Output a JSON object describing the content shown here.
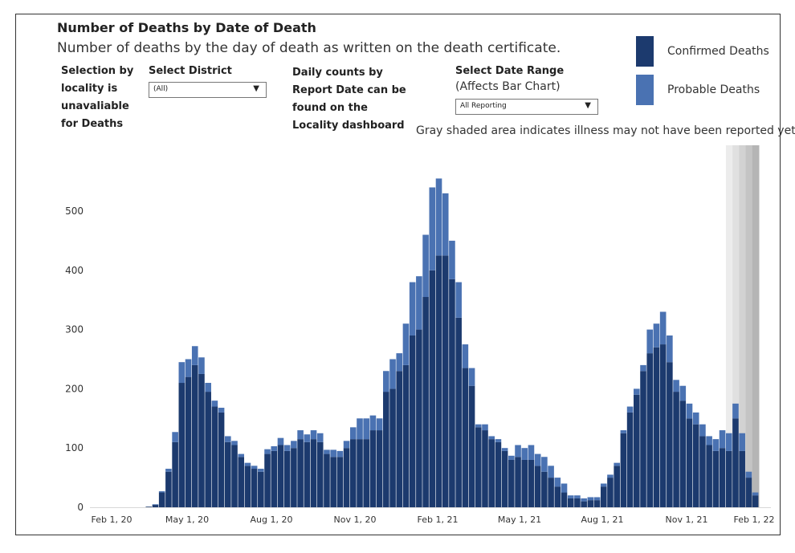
{
  "header": {
    "title": "Number of Deaths by Date of Death",
    "subtitle": "Number of deaths by the day of death as written on the death certificate."
  },
  "controls": {
    "locality_note": "Selection by locality is unavaliable for Deaths",
    "district_label": "Select District",
    "district_value": "(All)",
    "daily_note": "Daily counts by Report Date can be found on the Locality dashboard",
    "range_label": "Select Date Range",
    "range_sublabel": "(Affects Bar Chart)",
    "range_value": "All Reporting"
  },
  "gray_note": "Gray shaded area indicates illness may not have been reported yet",
  "colors": {
    "confirmed": "#1c3a6e",
    "probable": "#4a72b2",
    "shade": "#c8c8c8"
  },
  "chart_data": {
    "type": "bar",
    "stacked": true,
    "x_ticks": [
      "Feb 1, 20",
      "May 1, 20",
      "Aug 1, 20",
      "Nov 1, 20",
      "Feb 1, 21",
      "May 1, 21",
      "Aug 1, 21",
      "Nov 1, 21",
      "Feb 1, 22"
    ],
    "y_ticks": [
      0,
      100,
      200,
      300,
      400,
      500
    ],
    "ylim": [
      0,
      560
    ],
    "legend": [
      "Confirmed Deaths",
      "Probable Deaths"
    ],
    "legend_position": "top-right",
    "shaded_region": "final ~5 weeks (Jan 2022)",
    "series": [
      {
        "name": "Confirmed Deaths",
        "values": [
          0,
          0,
          0,
          0,
          0,
          0,
          0,
          1,
          4,
          25,
          60,
          110,
          210,
          220,
          240,
          225,
          195,
          170,
          160,
          110,
          105,
          85,
          70,
          65,
          60,
          90,
          95,
          105,
          95,
          100,
          115,
          110,
          115,
          110,
          90,
          85,
          85,
          100,
          115,
          115,
          115,
          130,
          130,
          195,
          200,
          230,
          240,
          290,
          300,
          355,
          400,
          425,
          425,
          385,
          320,
          235,
          205,
          135,
          130,
          115,
          110,
          95,
          80,
          85,
          80,
          80,
          70,
          60,
          50,
          35,
          25,
          15,
          15,
          10,
          12,
          12,
          35,
          50,
          70,
          125,
          160,
          190,
          230,
          260,
          270,
          275,
          245,
          195,
          180,
          150,
          140,
          120,
          105,
          95,
          100,
          95,
          150,
          95,
          50,
          20
        ]
      },
      {
        "name": "Probable Deaths",
        "values": [
          0,
          0,
          0,
          0,
          0,
          0,
          0,
          0,
          1,
          2,
          5,
          17,
          35,
          30,
          32,
          28,
          15,
          10,
          8,
          10,
          7,
          5,
          5,
          5,
          5,
          8,
          8,
          12,
          10,
          12,
          15,
          13,
          15,
          15,
          7,
          12,
          10,
          12,
          20,
          35,
          35,
          25,
          20,
          35,
          50,
          30,
          70,
          90,
          90,
          105,
          140,
          130,
          105,
          65,
          60,
          40,
          30,
          5,
          10,
          5,
          5,
          5,
          7,
          20,
          20,
          25,
          20,
          25,
          20,
          15,
          15,
          5,
          5,
          5,
          5,
          5,
          5,
          5,
          5,
          5,
          10,
          10,
          10,
          40,
          40,
          55,
          45,
          20,
          25,
          25,
          20,
          20,
          15,
          20,
          30,
          30,
          25,
          30,
          10,
          5
        ]
      }
    ]
  }
}
